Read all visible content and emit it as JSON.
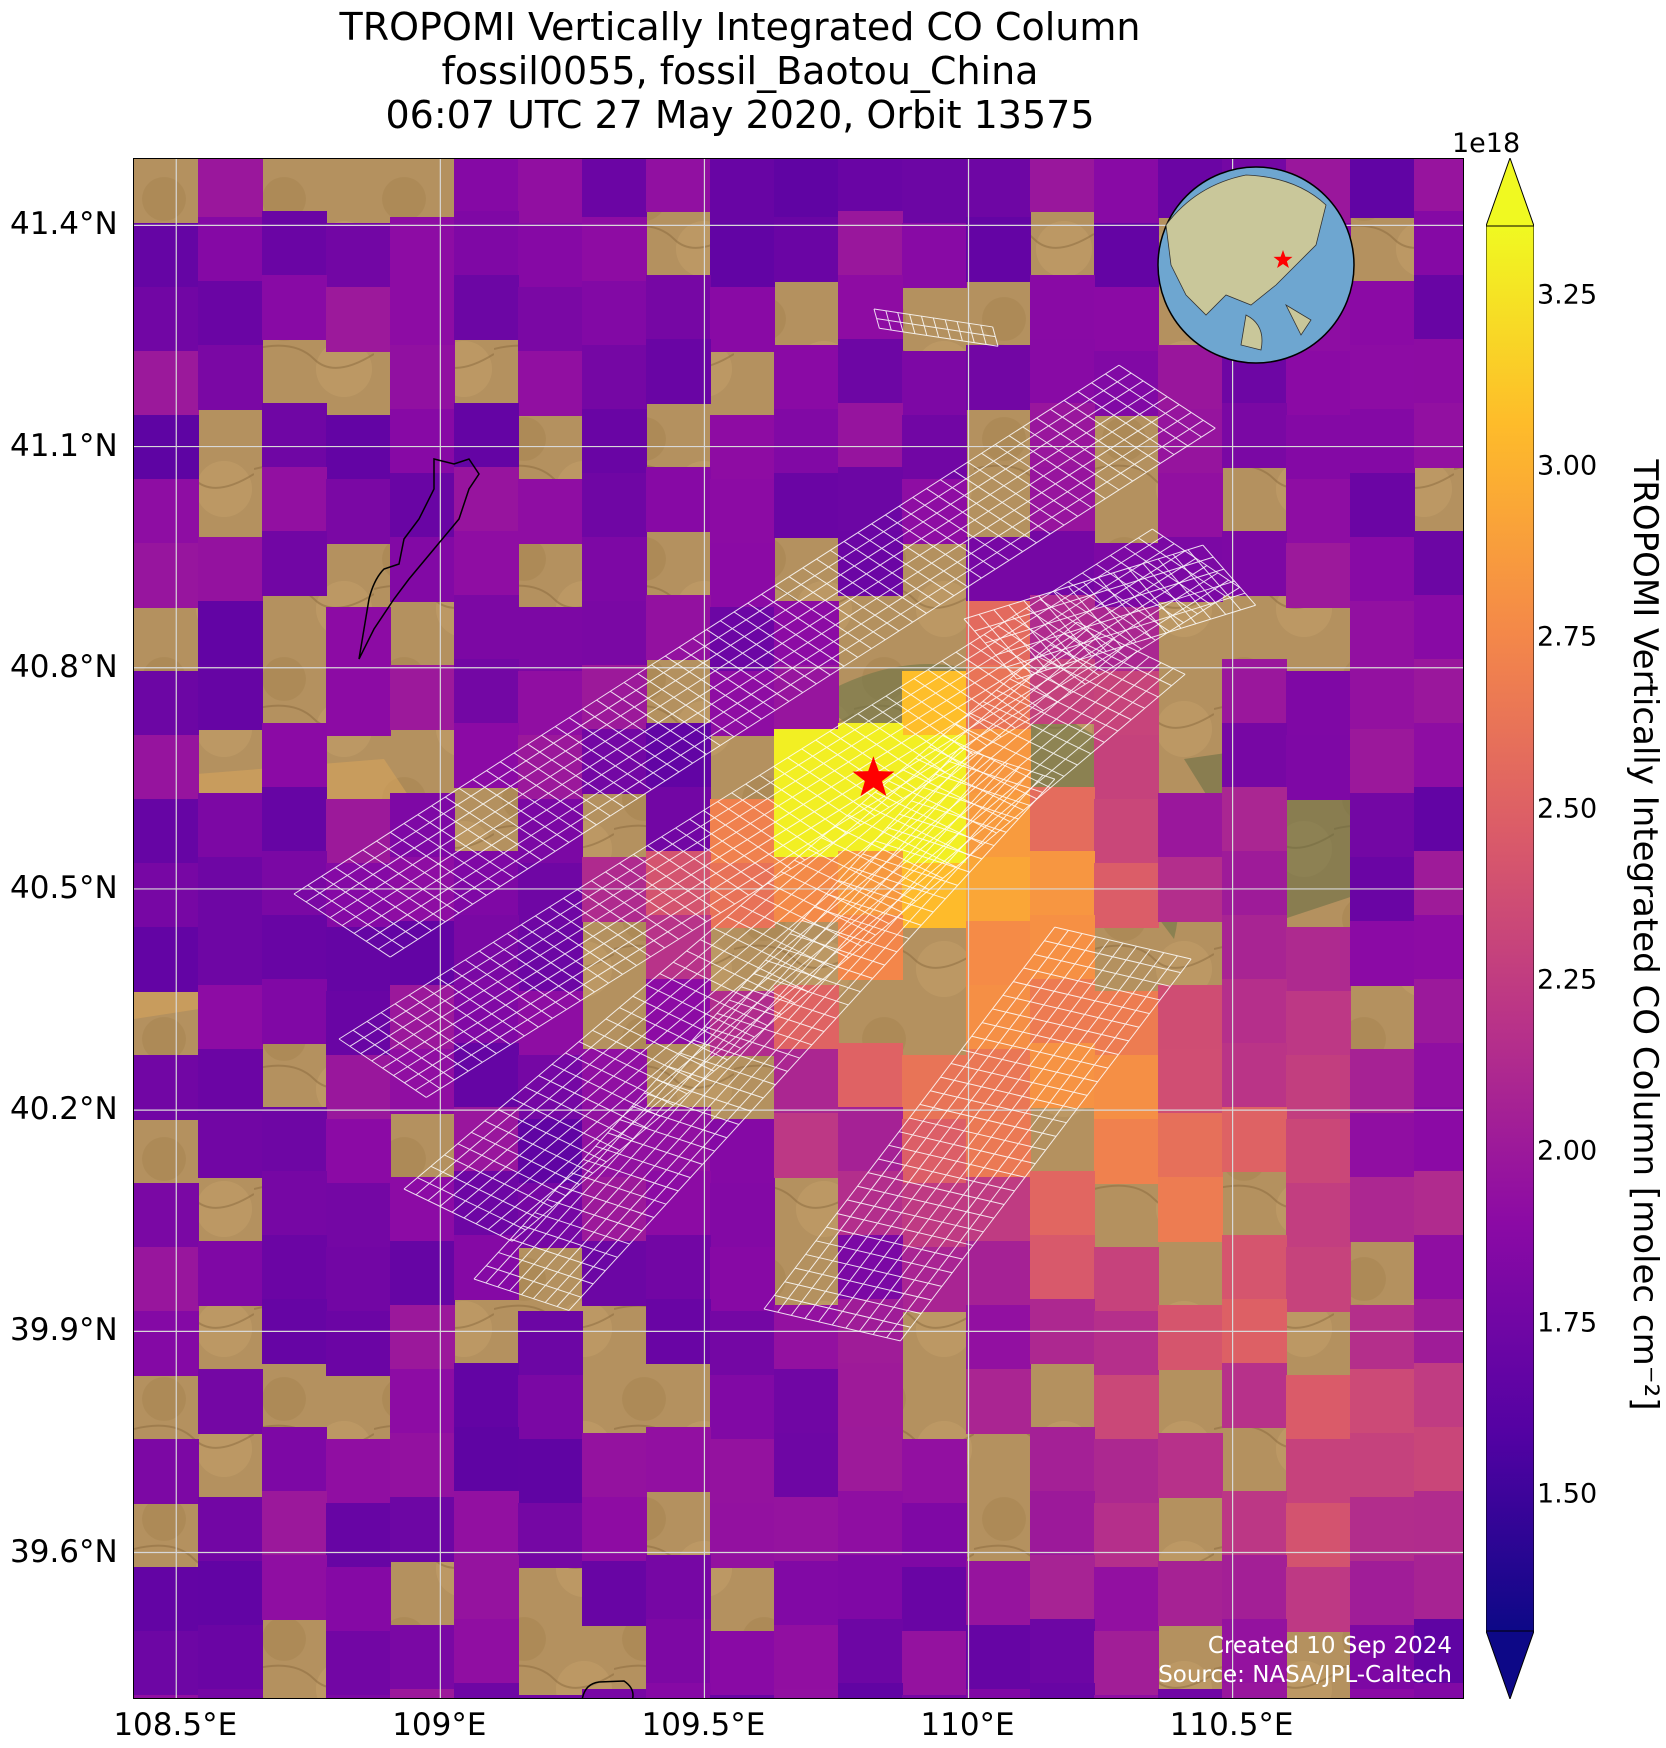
{
  "title": {
    "line1": "TROPOMI Vertically Integrated CO Column",
    "line2": "fossil0055, fossil_Baotou_China",
    "line3": "06:07 UTC 27 May 2020, Orbit 13575"
  },
  "map": {
    "lon_range": [
      108.42,
      110.94
    ],
    "lat_range": [
      39.4,
      41.49
    ],
    "lat_ticks": [
      "41.4°N",
      "41.1°N",
      "40.8°N",
      "40.5°N",
      "40.2°N",
      "39.9°N",
      "39.6°N"
    ],
    "lat_tick_values": [
      41.4,
      41.1,
      40.8,
      40.5,
      40.2,
      39.9,
      39.6
    ],
    "lon_ticks": [
      "108.5°E",
      "109°E",
      "109.5°E",
      "110°E",
      "110.5°E"
    ],
    "lon_tick_values": [
      108.5,
      109.0,
      109.5,
      110.0,
      110.5
    ],
    "source_location": {
      "lon": 109.82,
      "lat": 40.65,
      "marker": "red-star"
    },
    "background": "satellite imagery (desert / steppe terrain)",
    "credit_line1": "Created 10 Sep 2024",
    "credit_line2": "Source: NASA/JPL-Caltech"
  },
  "colorbar": {
    "label": "TROPOMI Vertically Integrated CO Column [molec cm⁻²]",
    "exponent": "1e18",
    "range": [
      1.3,
      3.35
    ],
    "ticks": [
      "1.50",
      "1.75",
      "2.00",
      "2.25",
      "2.50",
      "2.75",
      "3.00",
      "3.25"
    ],
    "tick_values": [
      1.5,
      1.75,
      2.0,
      2.25,
      2.5,
      2.75,
      3.0,
      3.25
    ],
    "colormap": "plasma",
    "extend": "both"
  },
  "inset": {
    "type": "globe",
    "marker": "red-star",
    "colors": {
      "ocean": "#6ea6d0",
      "land": "#c9c79a"
    }
  },
  "colors": {
    "land_base": "#b4915f",
    "gridline": "#d8d8d8",
    "footprint_outline": "#ffffff",
    "star": "#ff0000"
  },
  "chart_data": {
    "type": "heatmap",
    "units": "molec cm-2 (x1e18)",
    "plume_max_value": 3.3,
    "background_range": [
      1.6,
      2.0
    ]
  }
}
